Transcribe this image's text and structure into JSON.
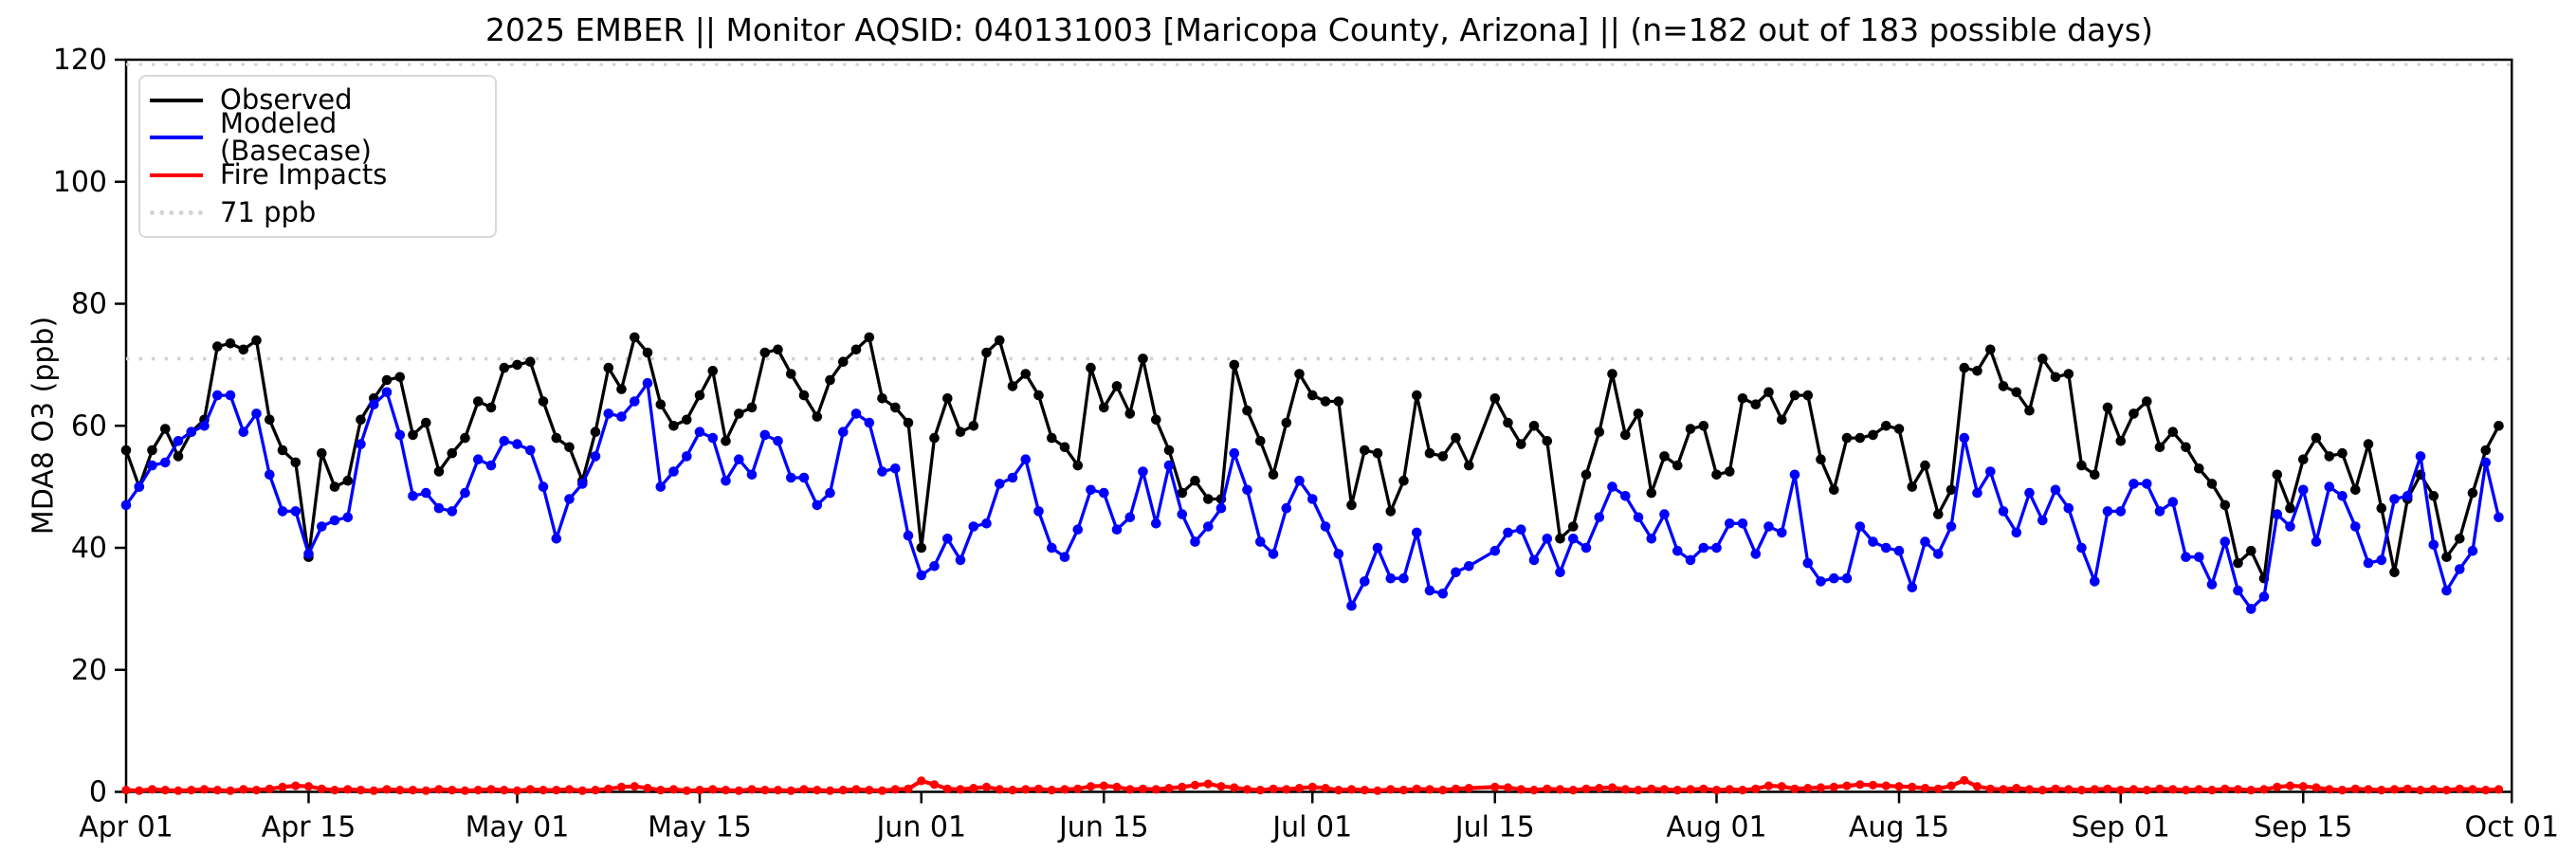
{
  "figure": {
    "title": "2025 EMBER || Monitor AQSID: 040131003 [Maricopa County, Arizona] || (n=182 out of 183 possible days)",
    "background_color": "#ffffff"
  },
  "legend": {
    "position": "upper left",
    "items": [
      {
        "label": "Observed",
        "color": "#000000",
        "style": "solid"
      },
      {
        "label": "Modeled (Basecase)",
        "color": "#0000ff",
        "style": "solid"
      },
      {
        "label": "Fire Impacts",
        "color": "#ff0000",
        "style": "solid"
      },
      {
        "label": "71 ppb",
        "color": "#d3d3d3",
        "style": "dotted"
      }
    ]
  },
  "chart_data": {
    "type": "line",
    "title": "2025 EMBER || Monitor AQSID: 040131003 [Maricopa County, Arizona] || (n=182 out of 183 possible days)",
    "xlabel": "",
    "ylabel": "MDA8 O3 (ppb)",
    "ylim": [
      0,
      120
    ],
    "y_ticks": [
      0,
      20,
      40,
      60,
      80,
      100,
      120
    ],
    "grid": false,
    "legend_position": "upper left",
    "x_unit": "daily values, day index 0 = Apr 01, last point day index 182 = Sep 30",
    "x_total_days": 183,
    "x_tick_labels": [
      "Apr 01",
      "Apr 15",
      "May 01",
      "May 15",
      "Jun 01",
      "Jun 15",
      "Jul 01",
      "Jul 15",
      "Aug 01",
      "Aug 15",
      "Sep 01",
      "Sep 15",
      "Oct 01"
    ],
    "x_tick_day_index": [
      0,
      14,
      30,
      44,
      61,
      75,
      91,
      105,
      122,
      136,
      153,
      167,
      183
    ],
    "missing_day_index": 104,
    "threshold_line": {
      "label": "71 ppb",
      "value": 71,
      "color": "#d3d3d3",
      "style": "dotted"
    },
    "top_dotted_line_value": 120,
    "series": [
      {
        "name": "Observed",
        "color": "#000000",
        "marker": "circle",
        "values": [
          56,
          50,
          56,
          59.5,
          55,
          59,
          61,
          73,
          73.5,
          72.5,
          74,
          61,
          56,
          54,
          38.5,
          55.5,
          50,
          51,
          61,
          64.5,
          67.5,
          68,
          58.5,
          60.5,
          52.5,
          55.5,
          58,
          64,
          63,
          69.5,
          70,
          70.5,
          64,
          58,
          56.5,
          51,
          59,
          69.5,
          66,
          74.5,
          72,
          63.5,
          60,
          61,
          65,
          69,
          57.5,
          62,
          63,
          72,
          72.5,
          68.5,
          65,
          61.5,
          67.5,
          70.5,
          72.5,
          74.5,
          64.5,
          63,
          60.5,
          40,
          58,
          64.5,
          59,
          60,
          72,
          74,
          66.5,
          68.5,
          65,
          58,
          56.5,
          53.5,
          69.5,
          63,
          66.5,
          62,
          71,
          61,
          56,
          49,
          51,
          48,
          48,
          70,
          62.5,
          57.5,
          52,
          60.5,
          68.5,
          65,
          64,
          64,
          47,
          56,
          55.5,
          46,
          51,
          65,
          55.5,
          55,
          58,
          53.5,
          null,
          64.5,
          60.5,
          57,
          60,
          57.5,
          41.5,
          43.5,
          52,
          59,
          68.5,
          58.5,
          62,
          49,
          55,
          53.5,
          59.5,
          60,
          52,
          52.5,
          64.5,
          63.5,
          65.5,
          61,
          65,
          65,
          54.5,
          49.5,
          58,
          58,
          58.5,
          60,
          59.5,
          50,
          53.5,
          45.5,
          49.5,
          69.5,
          69,
          72.5,
          66.5,
          65.5,
          62.5,
          71,
          68,
          68.5,
          53.5,
          52,
          63,
          57.5,
          62,
          64,
          56.5,
          59,
          56.5,
          53,
          50.5,
          47,
          37.5,
          39.5,
          35,
          52,
          46.5,
          54.5,
          58,
          55,
          55.5,
          49.5,
          57,
          46.5,
          36,
          48,
          52,
          48.5,
          38.5,
          41.5,
          49,
          56,
          60
        ]
      },
      {
        "name": "Modeled (Basecase)",
        "color": "#0000ff",
        "marker": "circle",
        "values": [
          47,
          50,
          53.5,
          54,
          57.5,
          59,
          60,
          65,
          65,
          59,
          62,
          52,
          46,
          46,
          39,
          43.5,
          44.5,
          45,
          57,
          63.5,
          65.5,
          58.5,
          48.5,
          49,
          46.5,
          46,
          49,
          54.5,
          53.5,
          57.5,
          57,
          56,
          50,
          41.5,
          48,
          50.5,
          55,
          62,
          61.5,
          64,
          67,
          50,
          52.5,
          55,
          59,
          58,
          51,
          54.5,
          52,
          58.5,
          57.5,
          51.5,
          51.5,
          47,
          49,
          59,
          62,
          60.5,
          52.5,
          53,
          42,
          35.5,
          37,
          41.5,
          38,
          43.5,
          44,
          50.5,
          51.5,
          54.5,
          46,
          40,
          38.5,
          43,
          49.5,
          49,
          43,
          45,
          52.5,
          44,
          53.5,
          45.5,
          41,
          43.5,
          46.5,
          55.5,
          49.5,
          41,
          39,
          46.5,
          51,
          48,
          43.5,
          39,
          30.5,
          34.5,
          40,
          35,
          35,
          42.5,
          33,
          32.5,
          36,
          37,
          null,
          39.5,
          42.5,
          43,
          38,
          41.5,
          36,
          41.5,
          40,
          45,
          50,
          48.5,
          45,
          41.5,
          45.5,
          39.5,
          38,
          40,
          40,
          44,
          44,
          39,
          43.5,
          42.5,
          52,
          37.5,
          34.5,
          35,
          35,
          43.5,
          41,
          40,
          39.5,
          33.5,
          41,
          39,
          43.5,
          58,
          49,
          52.5,
          46,
          42.5,
          49,
          44.5,
          49.5,
          46.5,
          40,
          34.5,
          46,
          46,
          50.5,
          50.5,
          46,
          47.5,
          38.5,
          38.5,
          34,
          41,
          33,
          30,
          32,
          45.5,
          43.5,
          49.5,
          41,
          50,
          48.5,
          43.5,
          37.5,
          38,
          48,
          48.5,
          55,
          40.5,
          33,
          36.5,
          39.5,
          54,
          45
        ]
      },
      {
        "name": "Fire Impacts",
        "color": "#ff0000",
        "marker": "circle",
        "values": [
          0.3,
          0.2,
          0.4,
          0.3,
          0.2,
          0.3,
          0.4,
          0.3,
          0.2,
          0.4,
          0.3,
          0.5,
          0.8,
          1.0,
          0.9,
          0.5,
          0.3,
          0.4,
          0.3,
          0.2,
          0.4,
          0.3,
          0.3,
          0.2,
          0.4,
          0.3,
          0.2,
          0.3,
          0.4,
          0.3,
          0.2,
          0.4,
          0.3,
          0.3,
          0.4,
          0.2,
          0.3,
          0.5,
          0.8,
          0.9,
          0.6,
          0.3,
          0.4,
          0.2,
          0.3,
          0.4,
          0.3,
          0.2,
          0.4,
          0.3,
          0.3,
          0.2,
          0.4,
          0.3,
          0.2,
          0.3,
          0.4,
          0.3,
          0.2,
          0.4,
          0.5,
          1.8,
          1.2,
          0.5,
          0.4,
          0.6,
          0.8,
          0.4,
          0.3,
          0.4,
          0.5,
          0.3,
          0.4,
          0.5,
          0.9,
          1.0,
          0.8,
          0.4,
          0.5,
          0.4,
          0.6,
          0.8,
          1.1,
          1.3,
          0.9,
          0.7,
          0.4,
          0.3,
          0.5,
          0.4,
          0.6,
          0.8,
          0.6,
          0.3,
          0.4,
          0.3,
          0.2,
          0.4,
          0.3,
          0.5,
          0.4,
          0.3,
          0.5,
          0.6,
          null,
          0.8,
          0.7,
          0.4,
          0.3,
          0.5,
          0.4,
          0.3,
          0.5,
          0.6,
          0.7,
          0.4,
          0.3,
          0.5,
          0.4,
          0.3,
          0.4,
          0.5,
          0.3,
          0.4,
          0.3,
          0.5,
          1.0,
          0.9,
          0.5,
          0.6,
          0.7,
          0.8,
          1.0,
          1.2,
          1.1,
          1.0,
          0.9,
          0.8,
          0.6,
          0.5,
          1.0,
          1.9,
          0.9,
          0.5,
          0.4,
          0.6,
          0.4,
          0.3,
          0.5,
          0.4,
          0.3,
          0.4,
          0.5,
          0.3,
          0.4,
          0.3,
          0.5,
          0.4,
          0.3,
          0.4,
          0.3,
          0.5,
          0.4,
          0.3,
          0.4,
          0.8,
          1.0,
          0.9,
          0.7,
          0.4,
          0.3,
          0.5,
          0.4,
          0.3,
          0.4,
          0.5,
          0.3,
          0.4,
          0.3,
          0.5,
          0.4,
          0.3,
          0.4
        ]
      }
    ]
  }
}
